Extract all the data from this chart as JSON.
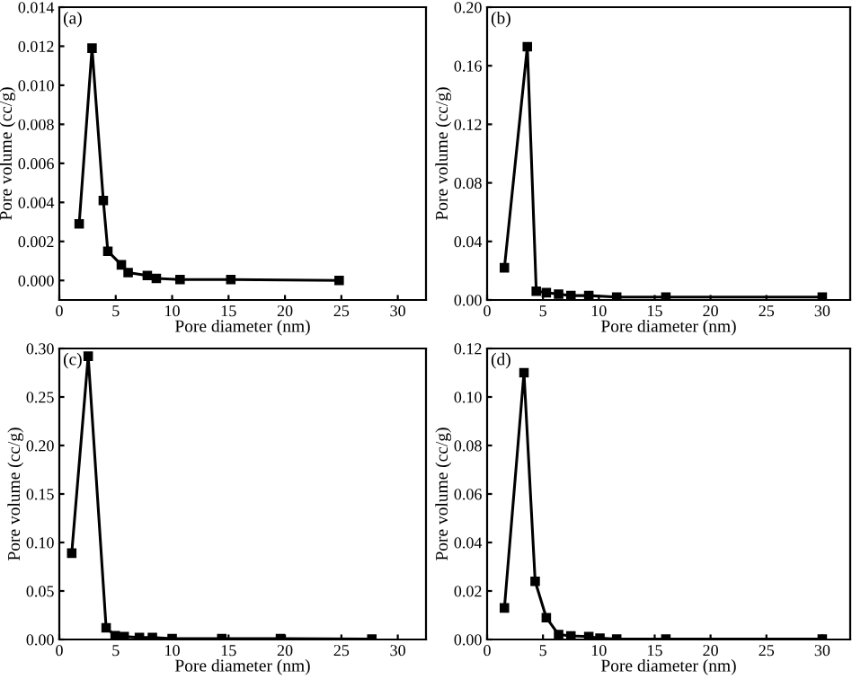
{
  "chart_data": [
    {
      "type": "line",
      "xlabel": "Pore diameter (nm)",
      "ylabel": "Pore volume (cc/g)",
      "annotations": [
        "(a)"
      ],
      "marker": "square",
      "grid": false,
      "legend": false,
      "xlim": [
        0,
        32.5
      ],
      "xticks": [
        0,
        5,
        10,
        15,
        20,
        25,
        30
      ],
      "ylim": [
        -0.001,
        0.014
      ],
      "yticks": [
        {
          "value": 0,
          "label": "0.000"
        },
        {
          "value": 0.002,
          "label": "0.002"
        },
        {
          "value": 0.004,
          "label": "0.004"
        },
        {
          "value": 0.006,
          "label": "0.006"
        },
        {
          "value": 0.008,
          "label": "0.008"
        },
        {
          "value": 0.01,
          "label": "0.010"
        },
        {
          "value": 0.012,
          "label": "0.012"
        },
        {
          "value": 0.014,
          "label": "0.014"
        }
      ],
      "series": [
        {
          "color": "#000000",
          "x": [
            1.76,
            2.9,
            3.9,
            4.3,
            5.5,
            6.1,
            7.8,
            8.6,
            10.7,
            15.2,
            24.8
          ],
          "values": [
            0.0029,
            0.0119,
            0.0041,
            0.0015,
            0.0008,
            0.0004,
            0.00025,
            0.0001,
            5e-05,
            5e-05,
            0.0
          ]
        }
      ]
    },
    {
      "type": "line",
      "xlabel": "Pore diameter (nm)",
      "ylabel": "Pore volume (cc/g)",
      "annotations": [
        "(b)"
      ],
      "marker": "square",
      "grid": false,
      "legend": false,
      "xlim": [
        0,
        32.5
      ],
      "xticks": [
        0,
        5,
        10,
        15,
        20,
        25,
        30
      ],
      "ylim": [
        0,
        0.2
      ],
      "yticks": [
        {
          "value": 0,
          "label": "0.00"
        },
        {
          "value": 0.04,
          "label": "0.04"
        },
        {
          "value": 0.08,
          "label": "0.08"
        },
        {
          "value": 0.12,
          "label": "0.12"
        },
        {
          "value": 0.16,
          "label": "0.16"
        },
        {
          "value": 0.2,
          "label": "0.20"
        }
      ],
      "series": [
        {
          "color": "#000000",
          "x": [
            1.55,
            3.6,
            4.4,
            5.3,
            6.4,
            7.5,
            9.1,
            11.6,
            16.0,
            30.0
          ],
          "values": [
            0.022,
            0.173,
            0.006,
            0.005,
            0.004,
            0.003,
            0.003,
            0.002,
            0.002,
            0.002
          ]
        }
      ]
    },
    {
      "type": "line",
      "xlabel": "Pore diameter (nm)",
      "ylabel": "Pore volume (cc/g)",
      "annotations": [
        "(c)"
      ],
      "marker": "square",
      "grid": false,
      "legend": false,
      "xlim": [
        0,
        32.5
      ],
      "xticks": [
        0,
        5,
        10,
        15,
        20,
        25,
        30
      ],
      "ylim": [
        0,
        0.3
      ],
      "yticks": [
        {
          "value": 0,
          "label": "0.00"
        },
        {
          "value": 0.05,
          "label": "0.05"
        },
        {
          "value": 0.1,
          "label": "0.10"
        },
        {
          "value": 0.15,
          "label": "0.15"
        },
        {
          "value": 0.2,
          "label": "0.20"
        },
        {
          "value": 0.25,
          "label": "0.25"
        },
        {
          "value": 0.3,
          "label": "0.30"
        }
      ],
      "series": [
        {
          "color": "#000000",
          "x": [
            1.1,
            2.56,
            4.15,
            4.95,
            5.75,
            7.1,
            8.25,
            10.0,
            14.4,
            19.6,
            27.7
          ],
          "values": [
            0.089,
            0.292,
            0.012,
            0.004,
            0.003,
            0.002,
            0.002,
            0.001,
            0.001,
            0.001,
            0.0005
          ]
        }
      ]
    },
    {
      "type": "line",
      "xlabel": "Pore diameter (nm)",
      "ylabel": "Pore volume (cc/g)",
      "annotations": [
        "(d)"
      ],
      "marker": "square",
      "grid": false,
      "legend": false,
      "xlim": [
        0,
        32.5
      ],
      "xticks": [
        0,
        5,
        10,
        15,
        20,
        25,
        30
      ],
      "ylim": [
        0,
        0.12
      ],
      "yticks": [
        {
          "value": 0,
          "label": "0.00"
        },
        {
          "value": 0.02,
          "label": "0.02"
        },
        {
          "value": 0.04,
          "label": "0.04"
        },
        {
          "value": 0.06,
          "label": "0.06"
        },
        {
          "value": 0.08,
          "label": "0.08"
        },
        {
          "value": 0.1,
          "label": "0.10"
        },
        {
          "value": 0.12,
          "label": "0.12"
        }
      ],
      "series": [
        {
          "color": "#000000",
          "x": [
            1.55,
            3.3,
            4.3,
            5.3,
            6.4,
            7.5,
            9.1,
            10.1,
            11.6,
            16.0,
            30.0
          ],
          "values": [
            0.013,
            0.11,
            0.024,
            0.009,
            0.002,
            0.0015,
            0.0012,
            0.0005,
            0.0002,
            0.0002,
            0.0002
          ]
        }
      ]
    }
  ]
}
